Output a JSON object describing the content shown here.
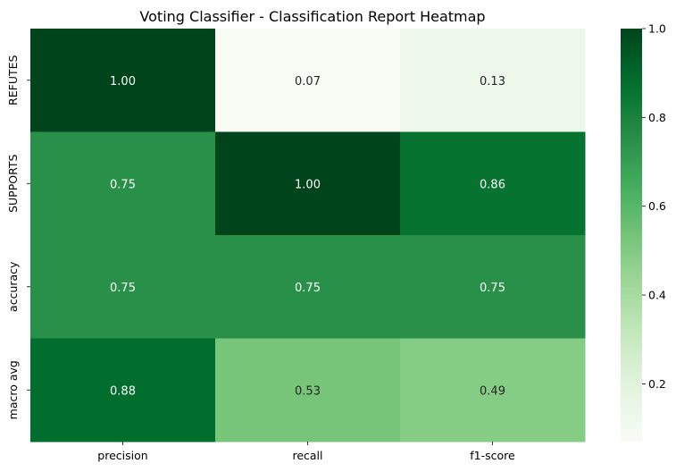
{
  "chart_data": {
    "type": "heatmap",
    "title": "Voting Classifier - Classification Report Heatmap",
    "xlabel": "",
    "ylabel": "",
    "columns": [
      "precision",
      "recall",
      "f1-score"
    ],
    "rows": [
      "REFUTES",
      "SUPPORTS",
      "accuracy",
      "macro avg"
    ],
    "values": [
      [
        1.0,
        0.07,
        0.13
      ],
      [
        0.75,
        1.0,
        0.86
      ],
      [
        0.75,
        0.75,
        0.75
      ],
      [
        0.88,
        0.53,
        0.49
      ]
    ],
    "annotations": [
      [
        "1.00",
        "0.07",
        "0.13"
      ],
      [
        "0.75",
        "1.00",
        "0.86"
      ],
      [
        "0.75",
        "0.75",
        "0.75"
      ],
      [
        "0.88",
        "0.53",
        "0.49"
      ]
    ],
    "colormap": "Greens",
    "vmin": 0.07,
    "vmax": 1.0,
    "colorbar_ticks": [
      0.2,
      0.4,
      0.6,
      0.8,
      1.0
    ],
    "colorbar_tick_labels": [
      "0.2",
      "0.4",
      "0.6",
      "0.8",
      "1.0"
    ]
  }
}
